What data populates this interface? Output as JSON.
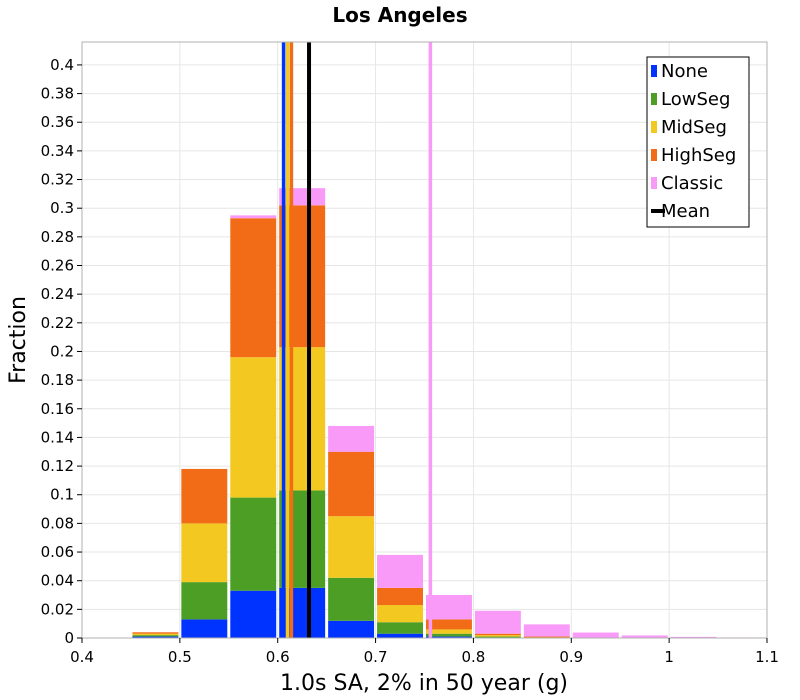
{
  "chart_data": {
    "type": "bar",
    "stacked": true,
    "title": "Los Angeles",
    "xlabel": "1.0s SA, 2% in 50 year (g)",
    "ylabel": "Fraction",
    "xlim": [
      0.4,
      1.1
    ],
    "ylim": [
      0,
      0.416
    ],
    "bin_width": 0.05,
    "x_ticks": [
      "0.4",
      "0.5",
      "0.6",
      "0.7",
      "0.8",
      "0.9",
      "1",
      "1.1"
    ],
    "y_ticks": [
      "0",
      "0.02",
      "0.04",
      "0.06",
      "0.08",
      "0.1",
      "0.12",
      "0.14",
      "0.16",
      "0.18",
      "0.2",
      "0.22",
      "0.24",
      "0.26",
      "0.28",
      "0.3",
      "0.32",
      "0.34",
      "0.36",
      "0.38",
      "0.4"
    ],
    "grid": true,
    "legend_position": "top-right",
    "bin_centers": [
      0.475,
      0.525,
      0.575,
      0.625,
      0.675,
      0.725,
      0.775,
      0.825,
      0.875,
      0.925,
      0.975,
      1.025,
      1.075
    ],
    "series": [
      {
        "name": "None",
        "color": "#0033ff",
        "values": [
          0.001,
          0.013,
          0.033,
          0.035,
          0.012,
          0.003,
          0.001,
          0.0003,
          0,
          0,
          0,
          0,
          0
        ]
      },
      {
        "name": "LowSeg",
        "color": "#4c9e25",
        "values": [
          0.001,
          0.026,
          0.065,
          0.068,
          0.03,
          0.008,
          0.002,
          0.0007,
          0.0003,
          0,
          0,
          0,
          0
        ]
      },
      {
        "name": "MidSeg",
        "color": "#f2c821",
        "values": [
          0.001,
          0.041,
          0.098,
          0.1,
          0.043,
          0.012,
          0.003,
          0.001,
          0.0005,
          0,
          0,
          0,
          0
        ]
      },
      {
        "name": "HighSeg",
        "color": "#f26c17",
        "values": [
          0.001,
          0.038,
          0.097,
          0.099,
          0.045,
          0.012,
          0.007,
          0.001,
          0.0002,
          0,
          0,
          0,
          0
        ]
      },
      {
        "name": "Classic",
        "color": "#f99af9",
        "values": [
          0,
          0,
          0.002,
          0.012,
          0.018,
          0.023,
          0.017,
          0.016,
          0.0085,
          0.0038,
          0.0018,
          0.0008,
          0.0004
        ]
      }
    ],
    "mean_lines": [
      {
        "series": "None",
        "color": "#0033ff",
        "x": 0.606
      },
      {
        "series": "MidSeg",
        "color": "#f2c821",
        "x": 0.61
      },
      {
        "series": "HighSeg",
        "color": "#f26c17",
        "x": 0.614
      },
      {
        "series": "Mean",
        "color": "#000000",
        "x": 0.632
      },
      {
        "series": "Classic",
        "color": "#f99af9",
        "x": 0.756
      }
    ],
    "legend": [
      {
        "name": "None",
        "color": "#0033ff",
        "kind": "box"
      },
      {
        "name": "LowSeg",
        "color": "#4c9e25",
        "kind": "box"
      },
      {
        "name": "MidSeg",
        "color": "#f2c821",
        "kind": "box"
      },
      {
        "name": "HighSeg",
        "color": "#f26c17",
        "kind": "box"
      },
      {
        "name": "Classic",
        "color": "#f99af9",
        "kind": "box"
      },
      {
        "name": "Mean",
        "color": "#000000",
        "kind": "line"
      }
    ]
  }
}
